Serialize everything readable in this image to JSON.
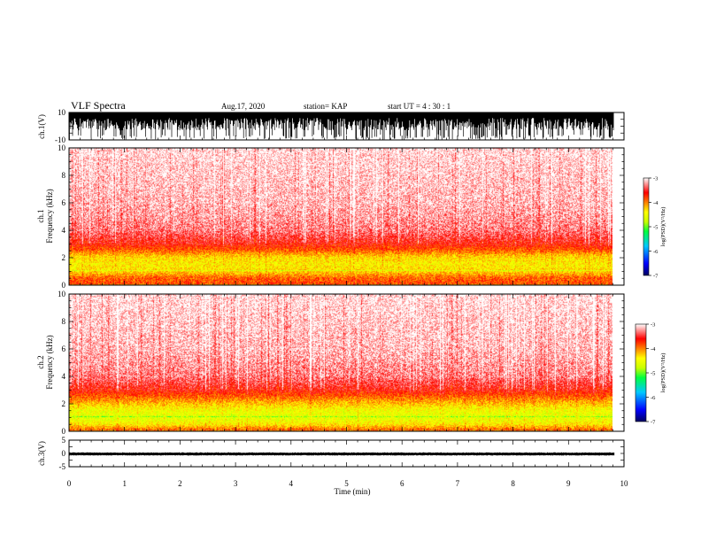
{
  "header": {
    "title": "VLF Spectra",
    "date": "Aug.17, 2020",
    "station": "station= KAP",
    "start": "start  UT =   4 : 30 : 1"
  },
  "colors": {
    "background": "#ffffff",
    "axes": "#000000",
    "waveform": "#000000"
  },
  "chart_data": [
    {
      "type": "line",
      "panel": "ch1-waveform",
      "ylabel": "ch.1(V)",
      "ylim": [
        -10,
        10
      ],
      "yticks": [
        "10",
        "-10"
      ],
      "description_values": {
        "amplitude_range": [
          -10,
          10
        ],
        "note": "dense saturated waveform, mostly between -3 and 10 V"
      }
    },
    {
      "type": "heatmap",
      "panel": "ch1-spectrogram",
      "ylabel_line1": "ch.1",
      "ylabel_line2": "Frequency  (kHz)",
      "ylim": [
        0,
        10
      ],
      "yticks": [
        "0",
        "2",
        "4",
        "6",
        "8",
        "10"
      ],
      "xlim": [
        0,
        10
      ],
      "data_extent_x": [
        0,
        9.82
      ],
      "band_profile": {
        "freq_khz": [
          0,
          0.5,
          1.0,
          1.5,
          2.0,
          2.5,
          3.0,
          4.0,
          6.0,
          8.0,
          10.0
        ],
        "log_psd": [
          -3.8,
          -3.9,
          -4.3,
          -4.4,
          -4.3,
          -3.9,
          -3.6,
          -3.3,
          -3.15,
          -3.1,
          -3.05
        ]
      },
      "colorbar": {
        "label": "log(PSD)(V²/Hz)",
        "range": [
          -7,
          -3
        ],
        "ticks": [
          "-3",
          "-4",
          "-5",
          "-6",
          "-7"
        ]
      }
    },
    {
      "type": "heatmap",
      "panel": "ch2-spectrogram",
      "ylabel_line1": "ch.2",
      "ylabel_line2": "Frequency  (kHz)",
      "ylim": [
        0,
        10
      ],
      "yticks": [
        "0",
        "2",
        "4",
        "6",
        "8",
        "10"
      ],
      "xlim": [
        0,
        10
      ],
      "data_extent_x": [
        0,
        9.82
      ],
      "band_profile": {
        "freq_khz": [
          0,
          0.5,
          1.0,
          1.5,
          2.0,
          2.5,
          3.0,
          4.0,
          6.0,
          8.0,
          10.0
        ],
        "log_psd": [
          -3.8,
          -4.4,
          -4.6,
          -4.5,
          -4.2,
          -3.9,
          -3.6,
          -3.3,
          -3.15,
          -3.1,
          -3.05
        ]
      },
      "colorbar": {
        "label": "log(PSD)(V²/Hz)",
        "range": [
          -7,
          -3
        ],
        "ticks": [
          "-3",
          "-4",
          "-5",
          "-6",
          "-7"
        ]
      }
    },
    {
      "type": "line",
      "panel": "ch3-waveform",
      "ylabel": "ch.3(V)",
      "ylim": [
        -5,
        5
      ],
      "yticks": [
        "5",
        "0",
        "-5"
      ],
      "description_values": {
        "amplitude_range": [
          -0.8,
          0.4
        ]
      }
    }
  ],
  "x_axis": {
    "label": "Time  (min)",
    "lim": [
      0,
      10
    ],
    "ticks": [
      "0",
      "1",
      "2",
      "3",
      "4",
      "5",
      "6",
      "7",
      "8",
      "9",
      "10"
    ]
  }
}
